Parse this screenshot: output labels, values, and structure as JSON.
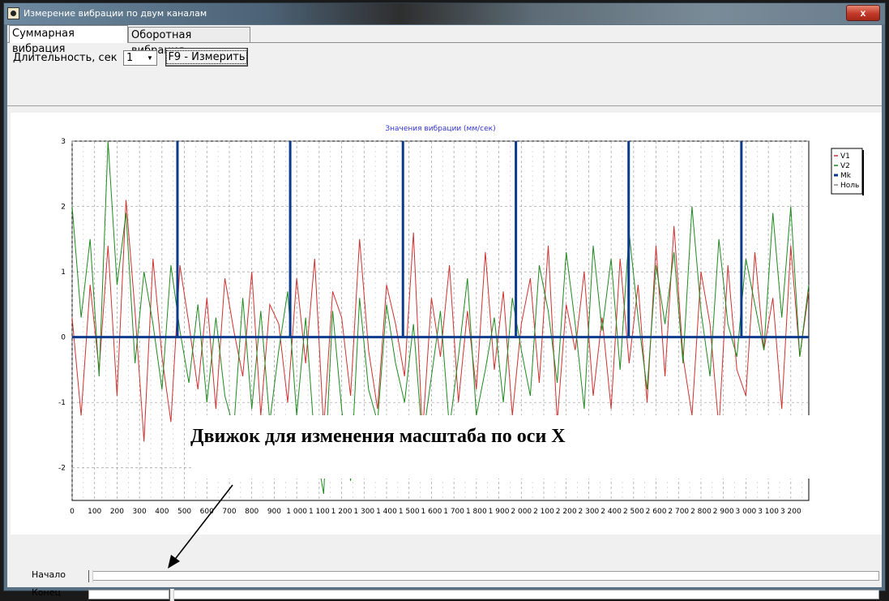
{
  "window": {
    "title": "Измерение вибрации по двум каналам",
    "close_glyph": "x"
  },
  "tabs": [
    {
      "label": "Суммарная вибрация",
      "active": true
    },
    {
      "label": "Оборотная вибрация",
      "active": false
    }
  ],
  "toolbar": {
    "duration_label": "Длительность, сек",
    "duration_value": "1",
    "measure_label": "F9 - Измерить"
  },
  "sliders": {
    "start_label": "Начало",
    "end_label": "Конец"
  },
  "annotation": "Движок для изменения масштаба по оси X",
  "colors": {
    "v1": "#d03030",
    "v2": "#1e8a1e",
    "mk": "#0a3a8c",
    "title": "#3333cc"
  },
  "chart_data": {
    "type": "line",
    "title": "Значения вибрации  (мм/сек)",
    "xlabel": "",
    "ylabel": "",
    "xlim": [
      0,
      3280
    ],
    "ylim": [
      -2.5,
      3
    ],
    "x_ticks": [
      "0",
      "100",
      "200",
      "300",
      "400",
      "500",
      "600",
      "700",
      "800",
      "900",
      "1 000",
      "1 100",
      "1 200",
      "1 300",
      "1 400",
      "1 500",
      "1 600",
      "1 700",
      "1 800",
      "1 900",
      "2 000",
      "2 100",
      "2 200",
      "2 300",
      "2 400",
      "2 500",
      "2 600",
      "2 700",
      "2 800",
      "2 900",
      "3 000",
      "3 100",
      "3 200"
    ],
    "y_ticks": [
      "-2",
      "-1",
      "0",
      "1",
      "2",
      "3"
    ],
    "grid": true,
    "legend": {
      "placement": "right",
      "entries": [
        "V1",
        "V2",
        "Mk",
        "Ноль"
      ]
    },
    "marker_x": [
      469,
      971,
      1473,
      1976,
      2478,
      2980
    ],
    "series": [
      {
        "name": "V1",
        "x": [
          0,
          40,
          80,
          120,
          160,
          200,
          240,
          280,
          320,
          360,
          400,
          440,
          480,
          520,
          560,
          600,
          640,
          680,
          720,
          760,
          800,
          840,
          880,
          920,
          960,
          1000,
          1040,
          1080,
          1120,
          1160,
          1200,
          1240,
          1280,
          1320,
          1360,
          1400,
          1440,
          1480,
          1520,
          1560,
          1600,
          1640,
          1680,
          1720,
          1760,
          1800,
          1840,
          1880,
          1920,
          1960,
          2000,
          2040,
          2080,
          2120,
          2160,
          2200,
          2240,
          2280,
          2320,
          2360,
          2400,
          2440,
          2480,
          2520,
          2560,
          2600,
          2640,
          2680,
          2720,
          2760,
          2800,
          2840,
          2880,
          2920,
          2960,
          3000,
          3040,
          3080,
          3120,
          3160,
          3200,
          3240,
          3280
        ],
        "y": [
          0.3,
          -1.2,
          0.8,
          -0.5,
          1.4,
          -0.9,
          2.1,
          0.4,
          -1.6,
          1.2,
          -0.3,
          -1.3,
          1.1,
          0.2,
          -0.8,
          0.6,
          -1.1,
          0.9,
          0.1,
          -0.6,
          1.0,
          -1.2,
          0.5,
          0.2,
          -1.0,
          0.9,
          -0.4,
          1.2,
          -1.4,
          0.7,
          0.3,
          -0.9,
          1.5,
          -0.2,
          -1.1,
          0.8,
          0.2,
          -0.6,
          1.6,
          -1.5,
          0.6,
          -0.3,
          1.1,
          -1.0,
          0.4,
          -0.8,
          1.3,
          -0.5,
          0.7,
          -1.2,
          0.2,
          0.9,
          -0.7,
          1.4,
          -1.3,
          0.5,
          -0.2,
          1.0,
          -0.9,
          0.3,
          -1.1,
          1.2,
          -0.4,
          0.8,
          -1.0,
          1.4,
          -0.6,
          1.7,
          -0.3,
          -1.2,
          1.0,
          0.2,
          -1.4,
          1.1,
          -0.5,
          -0.9,
          1.3,
          -0.2,
          0.6,
          -1.1,
          1.4,
          -0.3,
          0.7
        ]
      },
      {
        "name": "V2",
        "x": [
          0,
          40,
          80,
          120,
          160,
          200,
          240,
          280,
          320,
          360,
          400,
          440,
          480,
          520,
          560,
          600,
          640,
          680,
          720,
          760,
          800,
          840,
          880,
          920,
          960,
          1000,
          1040,
          1080,
          1120,
          1160,
          1200,
          1240,
          1280,
          1320,
          1360,
          1400,
          1440,
          1480,
          1520,
          1560,
          1600,
          1640,
          1680,
          1720,
          1760,
          1800,
          1840,
          1880,
          1920,
          1960,
          2000,
          2040,
          2080,
          2120,
          2160,
          2200,
          2240,
          2280,
          2320,
          2360,
          2400,
          2440,
          2480,
          2520,
          2560,
          2600,
          2640,
          2680,
          2720,
          2760,
          2800,
          2840,
          2880,
          2920,
          2960,
          3000,
          3040,
          3080,
          3120,
          3160,
          3200,
          3240,
          3280
        ],
        "y": [
          2.0,
          0.3,
          1.5,
          -0.6,
          3.0,
          0.8,
          1.9,
          -0.4,
          1.0,
          0.2,
          -0.8,
          1.1,
          0.1,
          -0.7,
          0.5,
          -1.0,
          0.3,
          -0.9,
          -1.4,
          0.6,
          -1.1,
          0.4,
          -1.3,
          -0.2,
          0.7,
          -1.2,
          0.3,
          -1.6,
          -2.4,
          0.4,
          -1.1,
          -2.2,
          0.6,
          -0.8,
          -1.3,
          0.5,
          -0.4,
          -1.0,
          0.2,
          -1.6,
          -0.6,
          0.4,
          -1.4,
          -0.3,
          0.9,
          -1.2,
          -0.5,
          0.3,
          -1.0,
          0.6,
          -0.2,
          -0.9,
          1.1,
          0.4,
          -0.7,
          1.3,
          0.2,
          -1.1,
          1.4,
          0.1,
          1.2,
          -0.5,
          1.6,
          0.3,
          -0.8,
          1.1,
          0.2,
          1.3,
          -0.4,
          2.0,
          0.4,
          -0.6,
          1.5,
          0.2,
          -0.3,
          1.2,
          0.5,
          -0.2,
          1.9,
          0.3,
          2.0,
          -0.3,
          0.8
        ]
      }
    ]
  }
}
